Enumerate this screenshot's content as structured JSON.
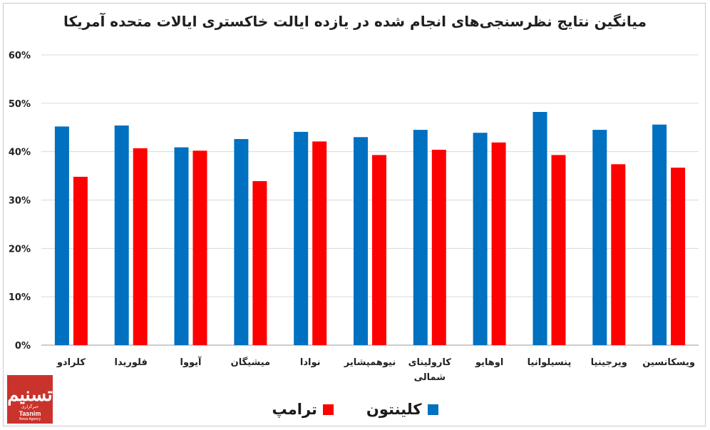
{
  "chart_data": {
    "type": "bar",
    "title": "میانگین نتایج نظرسنجی‌های انجام شده در یازده ایالت خاکستری ایالات متحده آمریکا",
    "categories": [
      "کلرادو",
      "فلوریدا",
      "آیووا",
      "میشیگان",
      "نوادا",
      "نیوهمپشایر",
      "کارولینای شمالی",
      "اوهایو",
      "پنسیلوانیا",
      "ویرجینیا",
      "ویسکانسین"
    ],
    "series": [
      {
        "name": "کلینتون",
        "color": "#0070c0",
        "values": [
          45.2,
          45.4,
          40.9,
          42.6,
          44.1,
          43.0,
          44.5,
          43.9,
          48.2,
          44.5,
          45.6
        ]
      },
      {
        "name": "ترامپ",
        "color": "#ff0000",
        "values": [
          34.8,
          40.7,
          40.2,
          33.9,
          42.1,
          39.3,
          40.4,
          41.9,
          39.3,
          37.4,
          36.7
        ]
      }
    ],
    "ylim": [
      0,
      60
    ],
    "yticks": [
      "0%",
      "10%",
      "20%",
      "30%",
      "40%",
      "50%",
      "60%"
    ],
    "grid": true,
    "legend": "bottom"
  },
  "logo": {
    "mark": "تسنیم",
    "subtitle": "خبرگزاری",
    "name": "Tasnim",
    "agency": "News Agency"
  }
}
